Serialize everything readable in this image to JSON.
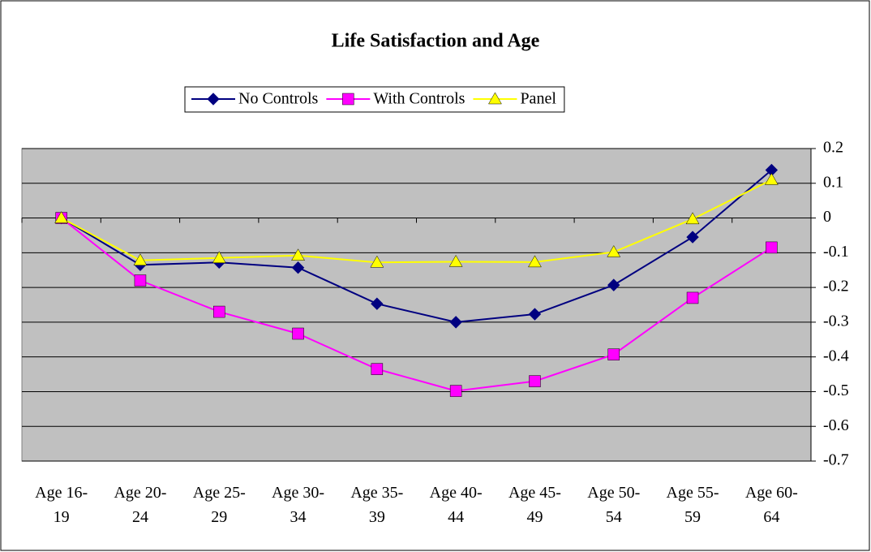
{
  "chart_data": {
    "type": "line",
    "title": "Life Satisfaction and Age",
    "categories": [
      "Age 16-19",
      "Age 20-24",
      "Age 25-29",
      "Age 30-34",
      "Age 35-39",
      "Age 40-44",
      "Age 45-49",
      "Age 50-54",
      "Age 55-59",
      "Age 60-64"
    ],
    "series": [
      {
        "name": "No Controls",
        "color": "#000080",
        "marker": "diamond",
        "values": [
          0,
          -0.135,
          -0.128,
          -0.143,
          -0.247,
          -0.3,
          -0.277,
          -0.193,
          -0.055,
          0.138
        ]
      },
      {
        "name": "With Controls",
        "color": "#ff00ff",
        "marker": "square",
        "values": [
          0,
          -0.18,
          -0.27,
          -0.333,
          -0.435,
          -0.498,
          -0.47,
          -0.393,
          -0.23,
          -0.085
        ]
      },
      {
        "name": "Panel",
        "color": "#ffff00",
        "marker": "triangle",
        "values": [
          0,
          -0.122,
          -0.115,
          -0.108,
          -0.128,
          -0.126,
          -0.127,
          -0.098,
          -0.003,
          0.11
        ]
      }
    ],
    "ylim": [
      -0.7,
      0.2
    ],
    "yticks": [
      0.2,
      0.1,
      0,
      -0.1,
      -0.2,
      -0.3,
      -0.4,
      -0.5,
      -0.6,
      -0.7
    ],
    "grid": true,
    "legend": "top",
    "plot_background": "#c0c0c0"
  }
}
